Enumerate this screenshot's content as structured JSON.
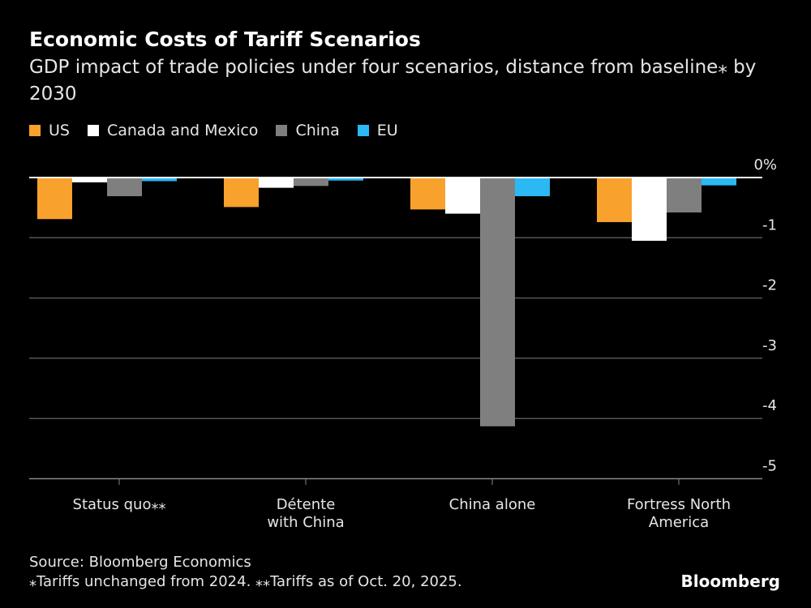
{
  "title": "Economic Costs of Tariff Scenarios",
  "subtitle": "GDP impact of trade policies under four scenarios, distance from baseline⁎ by 2030",
  "source": "Source: Bloomberg Economics",
  "footnote": "⁎Tariffs unchanged from 2024. ⁎⁎Tariffs as of Oct. 20, 2025.",
  "brand": "Bloomberg",
  "chart_data": {
    "type": "bar",
    "categories": [
      "Status quo⁎⁎",
      "Détente with China",
      "China alone",
      "Fortress North America"
    ],
    "series": [
      {
        "name": "US",
        "color": "#f8a12c",
        "values": [
          -0.69,
          -0.49,
          -0.53,
          -0.74
        ]
      },
      {
        "name": "Canada and Mexico",
        "color": "#ffffff",
        "values": [
          -0.08,
          -0.17,
          -0.6,
          -1.05
        ]
      },
      {
        "name": "China",
        "color": "#7f7f7f",
        "values": [
          -0.31,
          -0.14,
          -4.13,
          -0.58
        ]
      },
      {
        "name": "EU",
        "color": "#2bb8f5",
        "values": [
          -0.06,
          -0.05,
          -0.31,
          -0.13
        ]
      }
    ],
    "yticks": [
      "0%",
      "-1",
      "-2",
      "-3",
      "-4",
      "-5"
    ],
    "ylim": [
      -5,
      0
    ],
    "grid": true,
    "legend": "top-left"
  }
}
